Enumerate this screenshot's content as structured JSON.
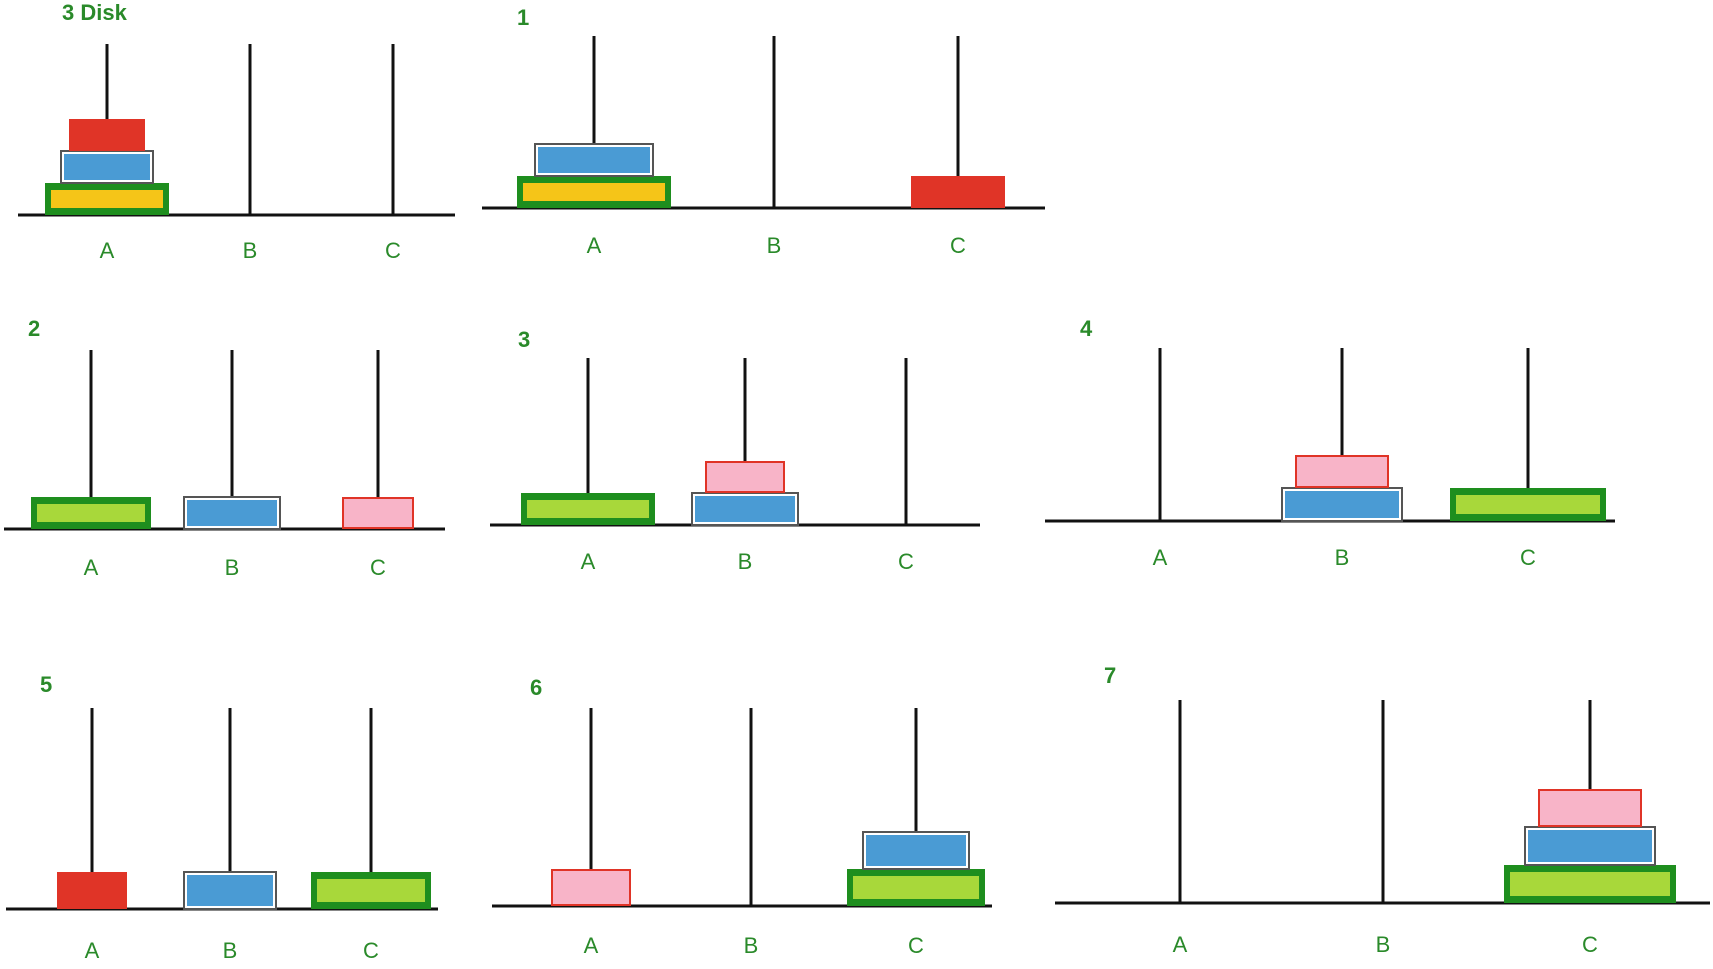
{
  "colors": {
    "label_green": "#2a8a2a",
    "line": "#111111",
    "red": "#e03427",
    "blue": "#4a9bd4",
    "yellow": "#f5c518",
    "lime": "#a8d83a",
    "pink": "#f8b4c8",
    "green_border": "#1e8e1e",
    "grey_border": "#555555",
    "white_border": "#ffffff"
  },
  "panels": [
    {
      "title": "3 Disk",
      "pegs": [
        "A",
        "B",
        "C"
      ],
      "disks": [
        {
          "peg": 0,
          "level": 0,
          "size": 3,
          "fill": "yellow",
          "border": "green"
        },
        {
          "peg": 0,
          "level": 1,
          "size": 2,
          "fill": "blue",
          "border": "grey"
        },
        {
          "peg": 0,
          "level": 2,
          "size": 1,
          "fill": "red",
          "border": "red"
        }
      ]
    },
    {
      "title": "1",
      "pegs": [
        "A",
        "B",
        "C"
      ],
      "disks": [
        {
          "peg": 0,
          "level": 0,
          "size": 3,
          "fill": "yellow",
          "border": "green"
        },
        {
          "peg": 0,
          "level": 1,
          "size": 2,
          "fill": "blue",
          "border": "grey"
        },
        {
          "peg": 2,
          "level": 0,
          "size": 1,
          "fill": "red",
          "border": "red"
        }
      ]
    },
    {
      "title": "2",
      "pegs": [
        "A",
        "B",
        "C"
      ],
      "disks": [
        {
          "peg": 0,
          "level": 0,
          "size": 3,
          "fill": "lime",
          "border": "green"
        },
        {
          "peg": 1,
          "level": 0,
          "size": 2,
          "fill": "blue",
          "border": "grey"
        },
        {
          "peg": 2,
          "level": 0,
          "size": 1,
          "fill": "pink",
          "border": "red"
        }
      ]
    },
    {
      "title": "3",
      "pegs": [
        "A",
        "B",
        "C"
      ],
      "disks": [
        {
          "peg": 0,
          "level": 0,
          "size": 3,
          "fill": "lime",
          "border": "green"
        },
        {
          "peg": 1,
          "level": 0,
          "size": 2,
          "fill": "blue",
          "border": "grey"
        },
        {
          "peg": 1,
          "level": 1,
          "size": 1,
          "fill": "pink",
          "border": "red"
        }
      ]
    },
    {
      "title": "4",
      "pegs": [
        "A",
        "B",
        "C"
      ],
      "disks": [
        {
          "peg": 1,
          "level": 0,
          "size": 2,
          "fill": "blue",
          "border": "grey"
        },
        {
          "peg": 1,
          "level": 1,
          "size": 1,
          "fill": "pink",
          "border": "red"
        },
        {
          "peg": 2,
          "level": 0,
          "size": 3,
          "fill": "lime",
          "border": "green"
        }
      ]
    },
    {
      "title": "5",
      "pegs": [
        "A",
        "B",
        "C"
      ],
      "disks": [
        {
          "peg": 0,
          "level": 0,
          "size": 1,
          "fill": "red",
          "border": "red"
        },
        {
          "peg": 1,
          "level": 0,
          "size": 2,
          "fill": "blue",
          "border": "grey"
        },
        {
          "peg": 2,
          "level": 0,
          "size": 3,
          "fill": "lime",
          "border": "green"
        }
      ]
    },
    {
      "title": "6",
      "pegs": [
        "A",
        "B",
        "C"
      ],
      "disks": [
        {
          "peg": 0,
          "level": 0,
          "size": 1,
          "fill": "pink",
          "border": "red"
        },
        {
          "peg": 2,
          "level": 0,
          "size": 3,
          "fill": "lime",
          "border": "green"
        },
        {
          "peg": 2,
          "level": 1,
          "size": 2,
          "fill": "blue",
          "border": "grey"
        }
      ]
    },
    {
      "title": "7",
      "pegs": [
        "A",
        "B",
        "C"
      ],
      "disks": [
        {
          "peg": 2,
          "level": 0,
          "size": 3,
          "fill": "lime",
          "border": "green"
        },
        {
          "peg": 2,
          "level": 1,
          "size": 2,
          "fill": "blue",
          "border": "grey"
        },
        {
          "peg": 2,
          "level": 2,
          "size": 1,
          "fill": "pink",
          "border": "red"
        }
      ]
    }
  ]
}
